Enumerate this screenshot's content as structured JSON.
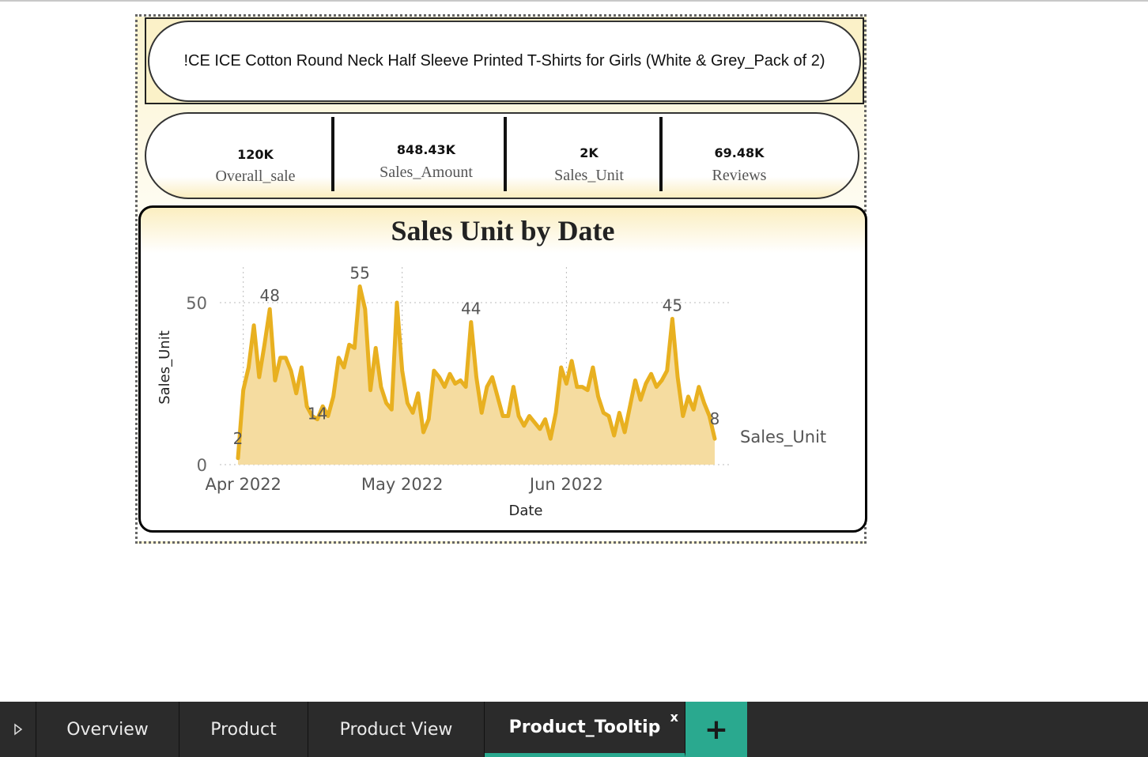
{
  "product": {
    "title": "!CE ICE Cotton Round Neck Half Sleeve Printed T-Shirts for Girls (White & Grey_Pack of 2)"
  },
  "kpis": [
    {
      "value": "120K",
      "label": "Overall_sale"
    },
    {
      "value": "848.43K",
      "label": "Sales_Amount"
    },
    {
      "value": "2K",
      "label": "Sales_Unit"
    },
    {
      "value": "69.48K",
      "label": "Reviews"
    }
  ],
  "chart_data": {
    "type": "area",
    "title": "Sales Unit by Date",
    "xlabel": "Date",
    "ylabel": "Sales_Unit",
    "x_ticks": [
      "Apr 2022",
      "May 2022",
      "Jun 2022"
    ],
    "y_ticks": [
      0,
      50
    ],
    "ylim": [
      0,
      60
    ],
    "grid": true,
    "legend": "right",
    "color": "#E8B020",
    "fill_color": "#F5DCA0",
    "series": [
      {
        "name": "Sales_Unit",
        "x_start": "2022-03-31",
        "x_step_days": 1,
        "values": [
          2,
          23,
          30,
          43,
          27,
          37,
          48,
          26,
          33,
          33,
          29,
          22,
          30,
          18,
          15,
          14,
          18,
          15,
          21,
          33,
          30,
          37,
          36,
          55,
          48,
          23,
          36,
          24,
          19,
          17,
          50,
          29,
          19,
          16,
          22,
          10,
          14,
          29,
          27,
          24,
          28,
          25,
          26,
          24,
          44,
          27,
          16,
          24,
          27,
          21,
          15,
          15,
          24,
          15,
          12,
          15,
          13,
          11,
          14,
          8,
          16,
          30,
          25,
          32,
          24,
          24,
          23,
          30,
          21,
          16,
          15,
          9,
          16,
          10,
          18,
          26,
          20,
          25,
          28,
          24,
          26,
          29,
          45,
          27,
          15,
          21,
          17,
          24,
          19,
          15,
          8
        ]
      }
    ],
    "annotations": [
      {
        "label": "48",
        "x": "2022-04-06",
        "y": 48
      },
      {
        "label": "55",
        "x": "2022-04-23",
        "y": 55
      },
      {
        "label": "44",
        "x": "2022-05-14",
        "y": 44
      },
      {
        "label": "45",
        "x": "2022-06-21",
        "y": 45
      },
      {
        "label": "2",
        "x": "2022-03-31",
        "y": 2
      },
      {
        "label": "14",
        "x": "2022-04-15",
        "y": 14
      },
      {
        "label": "8",
        "x": "2022-06-29",
        "y": 8
      }
    ]
  },
  "tabs": [
    {
      "label": "Overview",
      "active": false
    },
    {
      "label": "Product",
      "active": false
    },
    {
      "label": "Product View",
      "active": false
    },
    {
      "label": "Product_Tooltip",
      "active": true
    }
  ],
  "tab_close_label": "x",
  "add_tab_label": "+"
}
